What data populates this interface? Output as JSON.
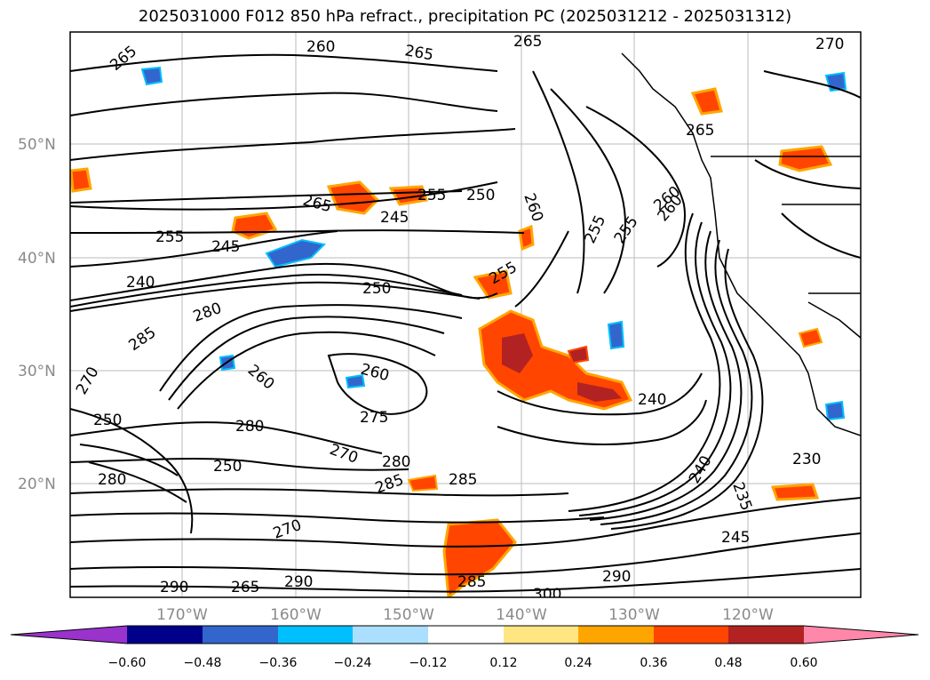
{
  "title": "2025031000 F012 850 hPa refract., precipitation PC (2025031212 - 2025031312)",
  "map": {
    "lat_labels": [
      "50°N",
      "40°N",
      "30°N",
      "20°N"
    ],
    "lon_labels": [
      "170°W",
      "160°W",
      "150°W",
      "140°W",
      "130°W",
      "120°W"
    ],
    "contour_labels": [
      "265",
      "260",
      "265",
      "265",
      "265",
      "270",
      "265",
      "260",
      "255",
      "255",
      "245",
      "240",
      "245",
      "250",
      "255",
      "260",
      "250",
      "255",
      "240",
      "280",
      "285",
      "270",
      "260",
      "275",
      "260",
      "280",
      "270",
      "250",
      "280",
      "285",
      "230",
      "235",
      "245",
      "240",
      "285",
      "290",
      "290",
      "300",
      "285",
      "290",
      "265",
      "260",
      "250",
      "255",
      "280",
      "270"
    ]
  },
  "colorbar": {
    "ticks": [
      "−0.60",
      "−0.48",
      "−0.36",
      "−0.24",
      "−0.12",
      "0.12",
      "0.24",
      "0.36",
      "0.48",
      "0.60"
    ],
    "colors": [
      "#9933cc",
      "#00008b",
      "#3366cc",
      "#00bfff",
      "#aadfff",
      "#ffffff",
      "#ffe680",
      "#ffa500",
      "#ff4500",
      "#b22222",
      "#ff88aa"
    ]
  }
}
